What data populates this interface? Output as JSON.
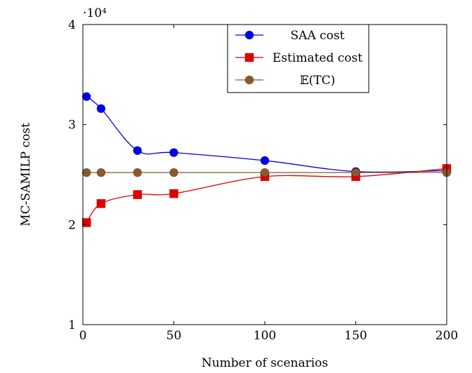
{
  "chart_data": {
    "type": "line",
    "title": "",
    "xlabel": "Number of scenarios",
    "ylabel": "MC-SAMILP cost",
    "xlim": [
      0,
      200
    ],
    "ylim": [
      10000,
      40000
    ],
    "xticks": [
      0,
      50,
      100,
      150,
      200
    ],
    "xtick_labels": [
      "0",
      "50",
      "100",
      "150",
      "200"
    ],
    "yticks": [
      10000,
      20000,
      30000,
      40000
    ],
    "ytick_labels": [
      "1",
      "2",
      "3",
      "4"
    ],
    "y_multiplier": "·10⁴",
    "grid": false,
    "legend_position": "top-right",
    "series": [
      {
        "name": "SAA cost",
        "color": "#0000ee",
        "marker": "circle",
        "x": [
          2,
          10,
          30,
          50,
          100,
          150,
          200
        ],
        "y": [
          32800,
          31600,
          27400,
          27200,
          26400,
          25300,
          25400
        ]
      },
      {
        "name": "Estimated cost",
        "color": "#dd0000",
        "marker": "square",
        "x": [
          2,
          10,
          30,
          50,
          100,
          150,
          200
        ],
        "y": [
          20200,
          22100,
          23000,
          23100,
          24800,
          24800,
          25600
        ]
      },
      {
        "name": "𝔼(TC)",
        "color": "#8b5a2b",
        "marker": "circle",
        "x": [
          2,
          10,
          30,
          50,
          100,
          150,
          200
        ],
        "y": [
          25200,
          25200,
          25200,
          25200,
          25200,
          25200,
          25200
        ]
      }
    ]
  }
}
